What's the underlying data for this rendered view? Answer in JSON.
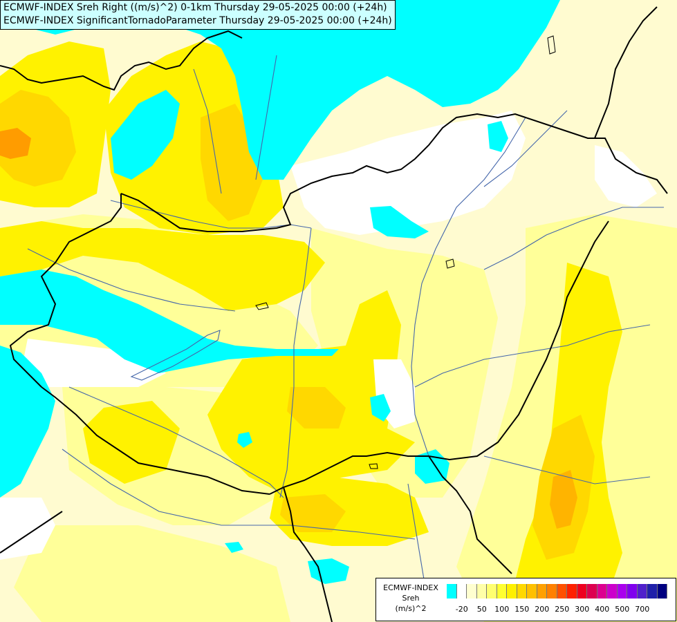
{
  "title": {
    "line1": "ECMWF-INDEX Sreh Right ((m/s)^2) 0-1km Thursday 29-05-2025 00:00 (+24h)",
    "line2": "ECMWF-INDEX SignificantTornadoParameter Thursday 29-05-2025 00:00 (+24h)"
  },
  "legend": {
    "source": "ECMWF-INDEX",
    "variable": "Sreh",
    "unit": "(m/s)^2",
    "colors": [
      "#00ffff",
      "#ffffff",
      "#ffffd0",
      "#ffffa8",
      "#ffff70",
      "#ffff30",
      "#fff000",
      "#ffd800",
      "#ffc000",
      "#ffa000",
      "#ff8000",
      "#ff5000",
      "#ff2000",
      "#ee0020",
      "#dd0050",
      "#dd0090",
      "#cc00cc",
      "#aa00ee",
      "#8000ee",
      "#5020cc",
      "#2020aa",
      "#000080"
    ],
    "ticks": [
      "-20",
      "50",
      "100",
      "150",
      "200",
      "250",
      "300",
      "400",
      "500",
      "700"
    ]
  },
  "colors": {
    "cyan": "#00ffff",
    "white": "#ffffff",
    "pale": "#fffbd0",
    "light_yellow": "#ffff99",
    "yellow": "#fff200",
    "gold": "#ffd800",
    "orange": "#ff9c00",
    "border": "#000000",
    "river": "#4466aa"
  }
}
